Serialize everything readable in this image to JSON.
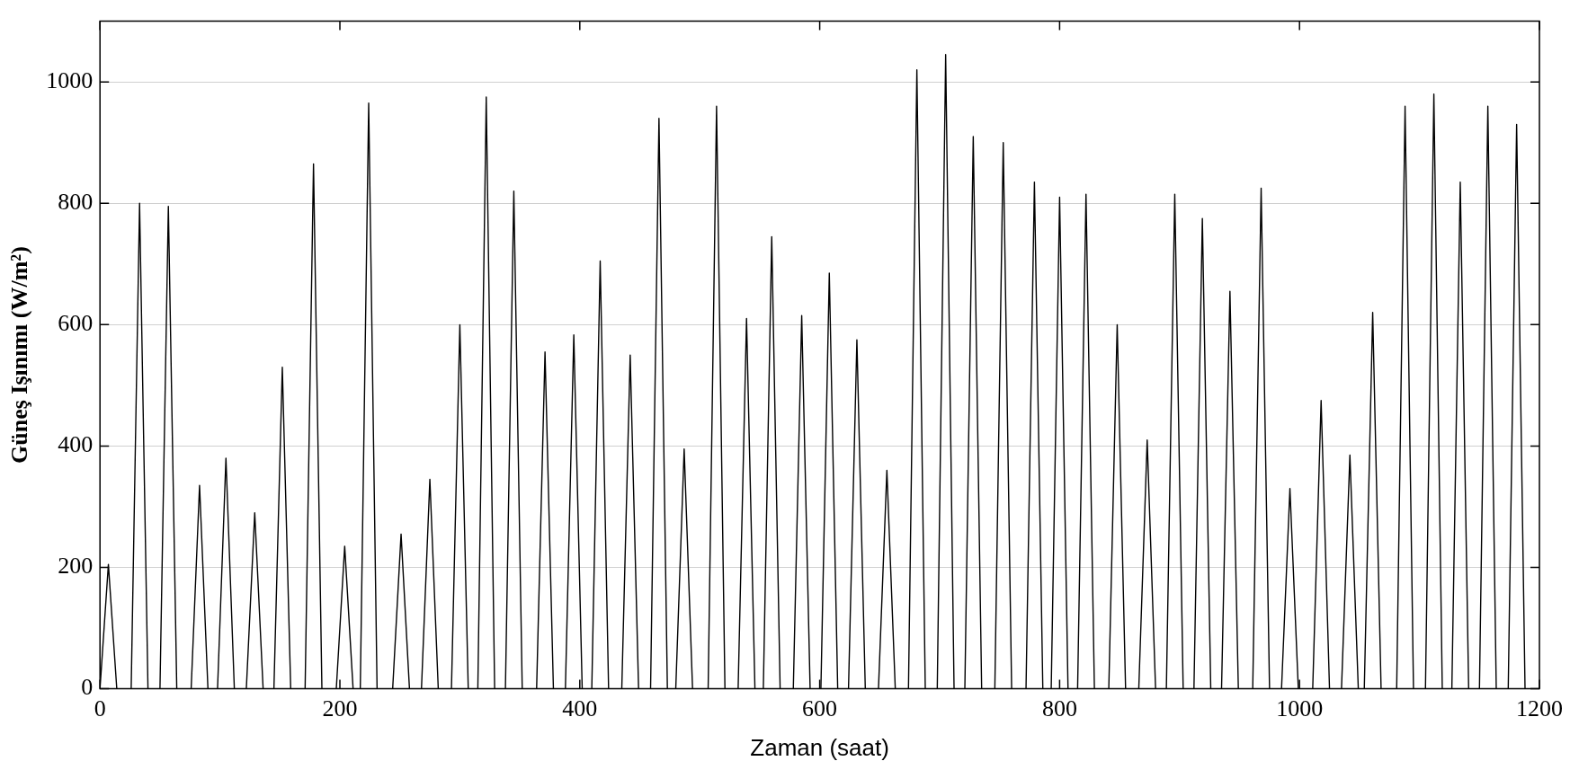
{
  "chart_data": {
    "type": "line",
    "xlabel": "Zaman (saat)",
    "ylabel": "Güneş Işınımı (W/m²)",
    "xlim": [
      0,
      1200
    ],
    "xticks": [
      0,
      200,
      400,
      600,
      800,
      1000,
      1200
    ],
    "ylim": [
      0,
      1100
    ],
    "yticks": [
      0,
      200,
      400,
      600,
      800,
      1000
    ],
    "grid": "y",
    "legend": false,
    "marker": "none",
    "line_style": "solid",
    "series": [
      {
        "color": "#000000",
        "x": [
          0,
          7,
          14,
          26,
          33,
          40,
          50,
          57,
          64,
          76,
          83,
          90,
          98,
          105,
          112,
          122,
          129,
          136,
          145,
          152,
          159,
          171,
          178,
          185,
          197,
          204,
          211,
          217,
          224,
          231,
          244,
          251,
          258,
          268,
          275,
          282,
          293,
          300,
          307,
          315,
          322,
          329,
          338,
          345,
          352,
          364,
          371,
          378,
          388,
          395,
          402,
          410,
          417,
          424,
          435,
          442,
          449,
          459,
          466,
          473,
          480,
          487,
          494,
          507,
          514,
          521,
          532,
          539,
          546,
          553,
          560,
          567,
          578,
          585,
          592,
          601,
          608,
          615,
          624,
          631,
          638,
          649,
          656,
          663,
          674,
          681,
          688,
          698,
          705,
          712,
          721,
          728,
          735,
          746,
          753,
          760,
          772,
          779,
          786,
          793,
          800,
          807,
          815,
          822,
          829,
          841,
          848,
          855,
          866,
          873,
          880,
          889,
          896,
          903,
          912,
          919,
          926,
          935,
          942,
          949,
          961,
          968,
          975,
          985,
          992,
          999,
          1011,
          1018,
          1025,
          1035,
          1042,
          1049,
          1054,
          1061,
          1068,
          1081,
          1088,
          1095,
          1105,
          1112,
          1119,
          1127,
          1134,
          1141,
          1150,
          1157,
          1164,
          1174,
          1181,
          1188
        ],
        "values": [
          0,
          205,
          0,
          0,
          800,
          0,
          0,
          795,
          0,
          0,
          335,
          0,
          0,
          380,
          0,
          0,
          290,
          0,
          0,
          530,
          0,
          0,
          865,
          0,
          0,
          235,
          0,
          0,
          965,
          0,
          0,
          255,
          0,
          0,
          345,
          0,
          0,
          600,
          0,
          0,
          975,
          0,
          0,
          820,
          0,
          0,
          555,
          0,
          0,
          583,
          0,
          0,
          705,
          0,
          0,
          550,
          0,
          0,
          940,
          0,
          0,
          395,
          0,
          0,
          960,
          0,
          0,
          610,
          0,
          0,
          745,
          0,
          0,
          615,
          0,
          0,
          685,
          0,
          0,
          575,
          0,
          0,
          360,
          0,
          0,
          1020,
          0,
          0,
          1045,
          0,
          0,
          910,
          0,
          0,
          900,
          0,
          0,
          835,
          0,
          0,
          810,
          0,
          0,
          815,
          0,
          0,
          600,
          0,
          0,
          410,
          0,
          0,
          815,
          0,
          0,
          775,
          0,
          0,
          655,
          0,
          0,
          825,
          0,
          0,
          330,
          0,
          0,
          475,
          0,
          0,
          385,
          0,
          0,
          620,
          0,
          0,
          960,
          0,
          0,
          980,
          0,
          0,
          835,
          0,
          0,
          960,
          0,
          0,
          930,
          0
        ]
      }
    ]
  }
}
